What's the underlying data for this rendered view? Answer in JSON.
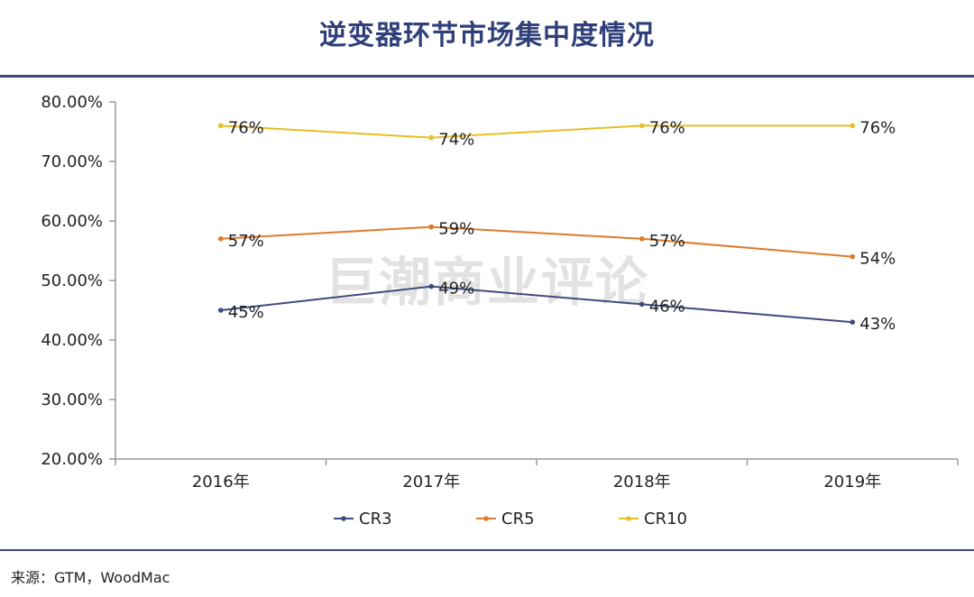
{
  "chart_data": {
    "type": "line",
    "title": "逆变器环节市场集中度情况",
    "categories": [
      "2016年",
      "2017年",
      "2018年",
      "2019年"
    ],
    "y_ticks": [
      "20.00%",
      "30.00%",
      "40.00%",
      "50.00%",
      "60.00%",
      "70.00%",
      "80.00%"
    ],
    "ylim": [
      0.2,
      0.8
    ],
    "grid": false,
    "legend_position": "bottom",
    "series": [
      {
        "name": "CR3",
        "color": "#3f4b7e",
        "values": [
          0.45,
          0.49,
          0.46,
          0.43
        ],
        "labels": [
          "45%",
          "49%",
          "46%",
          "43%"
        ]
      },
      {
        "name": "CR5",
        "color": "#e07a2a",
        "values": [
          0.57,
          0.59,
          0.57,
          0.54
        ],
        "labels": [
          "57%",
          "59%",
          "57%",
          "54%"
        ]
      },
      {
        "name": "CR10",
        "color": "#e8be25",
        "values": [
          0.76,
          0.74,
          0.76,
          0.76
        ],
        "labels": [
          "76%",
          "74%",
          "76%",
          "76%"
        ]
      }
    ],
    "watermark": "巨潮商业评论"
  },
  "source": "来源：GTM，WoodMac"
}
